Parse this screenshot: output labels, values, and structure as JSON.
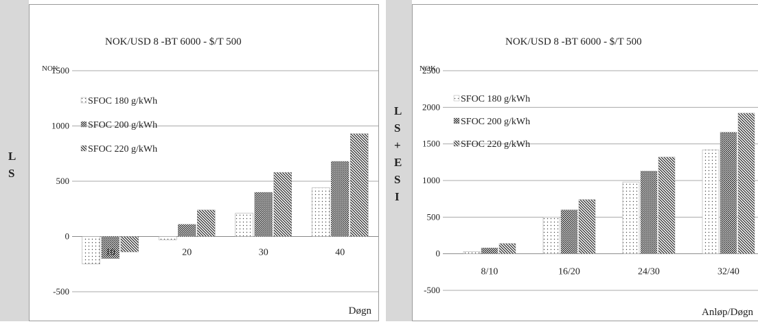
{
  "chart_data": [
    {
      "type": "bar",
      "title": "NOK/USD 8 -BT 6000 - $/T 500",
      "unit_label": "NOK",
      "ylabel": "L S",
      "xlabel": "Døgn",
      "ylim": [
        -500,
        1500
      ],
      "yticks": [
        -500,
        0,
        500,
        1000,
        1500
      ],
      "grid": true,
      "legend_position": "top-left",
      "categories": [
        "10",
        "20",
        "30",
        "40"
      ],
      "series": [
        {
          "name": "SFOC 180 g/kWh",
          "values": [
            -250,
            -30,
            210,
            440
          ]
        },
        {
          "name": "SFOC 200 g/kWh",
          "values": [
            -200,
            110,
            400,
            680
          ]
        },
        {
          "name": "SFOC 220 g/kWh",
          "values": [
            -140,
            240,
            580,
            930
          ]
        }
      ]
    },
    {
      "type": "bar",
      "title": "NOK/USD 8 -BT 6000 - $/T 500",
      "unit_label": "NOK",
      "ylabel": "L S + E S I",
      "xlabel": "Anløp/Døgn",
      "ylim": [
        -500,
        2500
      ],
      "yticks": [
        -500,
        0,
        500,
        1000,
        1500,
        2000,
        2500
      ],
      "grid": true,
      "legend_position": "top-left",
      "categories": [
        "8/10",
        "16/20",
        "24/30",
        "32/40"
      ],
      "series": [
        {
          "name": "SFOC 180 g/kWh",
          "values": [
            30,
            500,
            980,
            1420
          ]
        },
        {
          "name": "SFOC 200 g/kWh",
          "values": [
            80,
            600,
            1130,
            1660
          ]
        },
        {
          "name": "SFOC 220 g/kWh",
          "values": [
            140,
            740,
            1320,
            1920
          ]
        }
      ]
    }
  ]
}
